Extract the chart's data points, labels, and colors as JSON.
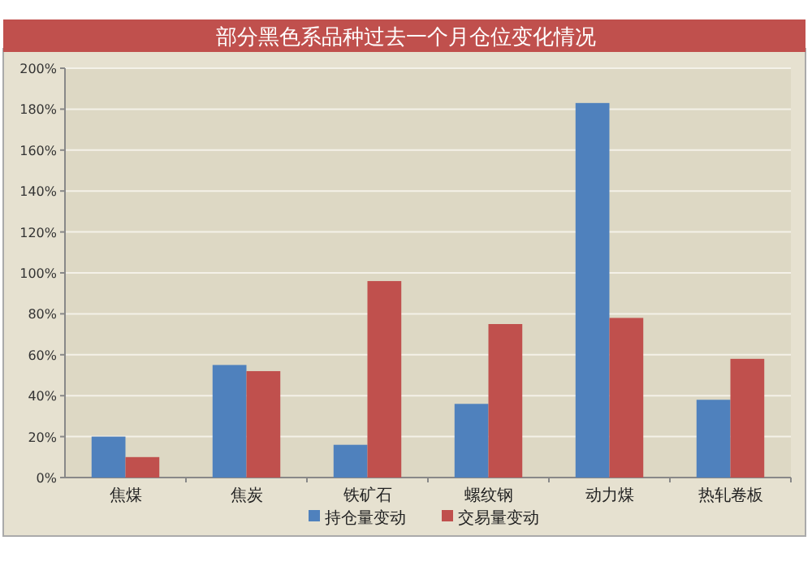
{
  "chart_data": {
    "type": "bar",
    "title": "部分黑色系品种过去一个月仓位变化情况",
    "categories": [
      "焦煤",
      "焦炭",
      "铁矿石",
      "螺纹钢",
      "动力煤",
      "热轧卷板"
    ],
    "series": [
      {
        "name": "持仓量变动",
        "color": "#4f81bd",
        "values": [
          20,
          55,
          16,
          36,
          183,
          38
        ]
      },
      {
        "name": "交易量变动",
        "color": "#c0504d",
        "values": [
          10,
          52,
          96,
          75,
          78,
          58
        ]
      }
    ],
    "ylim": [
      0,
      200
    ],
    "yticks": [
      {
        "value": 0,
        "label": "0%"
      },
      {
        "value": 20,
        "label": "20%"
      },
      {
        "value": 40,
        "label": "40%"
      },
      {
        "value": 60,
        "label": "60%"
      },
      {
        "value": 80,
        "label": "80%"
      },
      {
        "value": 100,
        "label": "100%"
      },
      {
        "value": 120,
        "label": "120%"
      },
      {
        "value": 140,
        "label": "140%"
      },
      {
        "value": 160,
        "label": "160%"
      },
      {
        "value": 180,
        "label": "180%"
      },
      {
        "value": 200,
        "label": "200%"
      }
    ],
    "grid": "y",
    "legend": "bottom"
  }
}
